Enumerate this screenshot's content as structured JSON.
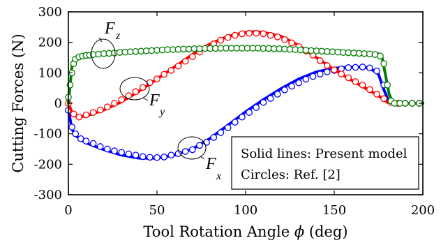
{
  "chart_data": {
    "type": "line",
    "title": "",
    "xlabel": "Tool Rotation Angle",
    "xlabel_symbol": "ϕ",
    "xlabel_unit": "(deg)",
    "ylabel": "Cutting Forces (N)",
    "xlim": [
      0,
      200
    ],
    "ylim": [
      -300,
      300
    ],
    "xticks": [
      "0",
      "50",
      "100",
      "150",
      "200"
    ],
    "yticks": [
      "-300",
      "-200",
      "-100",
      "0",
      "100",
      "200",
      "300"
    ],
    "grid": false,
    "annotations": [
      {
        "letter": "F",
        "sub": "z"
      },
      {
        "letter": "F",
        "sub": "y"
      },
      {
        "letter": "F",
        "sub": "x"
      }
    ],
    "legend_box": {
      "line1": "Solid lines: Present model",
      "line2": "Circles: Ref. [2]",
      "placement": "bottom-right"
    },
    "series": [
      {
        "key": "Fx",
        "color": "#0000ff",
        "line": {
          "x": [
            0,
            2,
            4,
            6,
            10,
            20,
            30,
            40,
            50,
            60,
            70,
            80,
            90,
            100,
            110,
            120,
            130,
            140,
            150,
            160,
            165,
            170,
            175,
            178,
            181,
            183,
            190,
            200
          ],
          "y": [
            -20,
            -85,
            -105,
            -115,
            -130,
            -152,
            -170,
            -180,
            -180,
            -170,
            -150,
            -115,
            -72,
            -28,
            12,
            48,
            80,
            103,
            115,
            119,
            119,
            116,
            95,
            45,
            3,
            0,
            0,
            0
          ]
        },
        "circles": {
          "x": [
            0,
            2,
            4,
            7,
            10,
            14,
            18,
            22,
            26,
            30,
            34,
            38,
            42,
            46,
            50,
            54,
            58,
            62,
            66,
            70,
            74,
            78,
            82,
            86,
            90,
            94,
            98,
            102,
            106,
            110,
            114,
            118,
            122,
            126,
            130,
            134,
            138,
            142,
            146,
            150,
            154,
            158,
            162,
            166,
            170,
            174,
            178,
            182,
            186,
            190,
            194,
            198
          ],
          "y": [
            -23,
            -78,
            -100,
            -116,
            -124,
            -132,
            -142,
            -150,
            -156,
            -161,
            -166,
            -170,
            -175,
            -177,
            -178,
            -176,
            -170,
            -165,
            -158,
            -152,
            -138,
            -128,
            -112,
            -96,
            -80,
            -62,
            -45,
            -30,
            -14,
            3,
            16,
            30,
            44,
            56,
            67,
            79,
            88,
            96,
            103,
            108,
            113,
            117,
            118,
            119,
            116,
            106,
            60,
            3,
            0,
            0,
            0,
            0
          ]
        }
      },
      {
        "key": "Fy",
        "color": "#ff0000",
        "line": {
          "x": [
            0,
            2,
            4,
            6,
            10,
            20,
            30,
            40,
            50,
            60,
            70,
            80,
            90,
            100,
            105,
            110,
            120,
            130,
            140,
            150,
            160,
            170,
            175,
            178,
            180,
            182,
            190,
            200
          ],
          "y": [
            0,
            -30,
            -42,
            -45,
            -42,
            -22,
            5,
            40,
            80,
            120,
            160,
            195,
            220,
            233,
            235,
            233,
            220,
            190,
            150,
            110,
            75,
            42,
            25,
            12,
            3,
            0,
            0,
            0
          ]
        },
        "circles": {
          "x": [
            0,
            3,
            6,
            10,
            14,
            18,
            22,
            26,
            30,
            34,
            38,
            42,
            46,
            50,
            54,
            58,
            62,
            66,
            70,
            74,
            78,
            82,
            86,
            90,
            94,
            98,
            102,
            106,
            110,
            114,
            118,
            122,
            126,
            130,
            134,
            138,
            142,
            146,
            150,
            154,
            158,
            162,
            166,
            170,
            174,
            178,
            182,
            186,
            190,
            194,
            198
          ],
          "y": [
            0,
            -35,
            -45,
            -38,
            -30,
            -22,
            -12,
            0,
            12,
            25,
            38,
            52,
            68,
            80,
            95,
            108,
            122,
            138,
            153,
            168,
            182,
            195,
            207,
            216,
            223,
            228,
            230,
            230,
            228,
            223,
            218,
            209,
            198,
            186,
            172,
            158,
            140,
            124,
            110,
            96,
            84,
            71,
            60,
            45,
            30,
            15,
            3,
            0,
            0,
            0,
            0
          ]
        }
      },
      {
        "key": "Fz",
        "color": "#008000",
        "line": {
          "x": [
            0,
            1,
            2,
            3,
            5,
            8,
            15,
            30,
            50,
            75,
            100,
            125,
            150,
            165,
            175,
            177,
            179,
            181,
            183,
            185,
            200
          ],
          "y": [
            0,
            60,
            120,
            145,
            155,
            158,
            163,
            170,
            176,
            180,
            182,
            180,
            172,
            167,
            162,
            150,
            90,
            30,
            3,
            0,
            0
          ]
        },
        "circles": {
          "x": [
            0,
            1,
            2,
            3,
            4,
            6,
            8,
            10,
            12,
            14,
            17,
            20,
            23,
            26,
            29,
            32,
            35,
            38,
            41,
            44,
            47,
            50,
            53,
            56,
            59,
            62,
            65,
            68,
            71,
            74,
            77,
            80,
            83,
            86,
            89,
            92,
            95,
            98,
            101,
            104,
            107,
            110,
            113,
            116,
            119,
            122,
            125,
            128,
            131,
            134,
            137,
            140,
            143,
            146,
            149,
            152,
            155,
            158,
            161,
            164,
            167,
            170,
            173,
            176,
            178,
            180,
            182,
            184,
            187,
            190,
            194,
            198
          ],
          "y": [
            20,
            60,
            100,
            130,
            145,
            152,
            155,
            157,
            158,
            160,
            161,
            163,
            164,
            165,
            167,
            168,
            169,
            170,
            171,
            172,
            173,
            174,
            175,
            176,
            176,
            177,
            178,
            178,
            179,
            179,
            180,
            180,
            180,
            181,
            181,
            181,
            181,
            181,
            181,
            181,
            181,
            180,
            180,
            179,
            179,
            178,
            177,
            176,
            175,
            174,
            173,
            172,
            171,
            170,
            169,
            168,
            167,
            166,
            165,
            164,
            163,
            162,
            160,
            155,
            130,
            60,
            8,
            0,
            0,
            0,
            0,
            0
          ]
        }
      }
    ]
  }
}
